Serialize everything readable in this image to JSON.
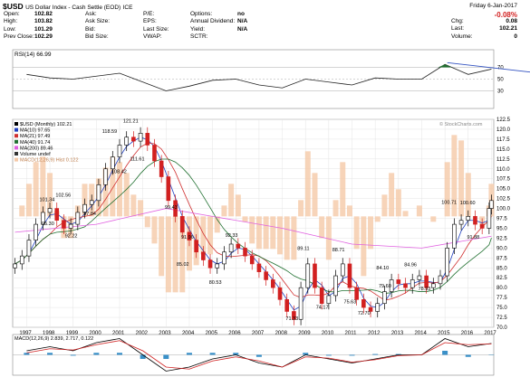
{
  "header": {
    "symbol": "$USD",
    "name": "US Dollar Index - Cash Settle (EOD)",
    "exchange": "ICE",
    "date": "Friday   6-Jan-2017",
    "change_pct": "-0.08%",
    "watermark": "© StockCharts.com",
    "quote": [
      {
        "label": "Open:",
        "value": "102.82"
      },
      {
        "label": "High:",
        "value": "103.82"
      },
      {
        "label": "Low:",
        "value": "101.29"
      },
      {
        "label": "Prev Close:",
        "value": "102.29"
      }
    ],
    "quote2": [
      {
        "label": "Ask:",
        "value": ""
      },
      {
        "label": "Ask Size:",
        "value": ""
      },
      {
        "label": "Bid:",
        "value": ""
      },
      {
        "label": "Bid Size:",
        "value": ""
      }
    ],
    "quote3": [
      {
        "label": "P/E:",
        "value": ""
      },
      {
        "label": "EPS:",
        "value": ""
      },
      {
        "label": "Last Size:",
        "value": ""
      },
      {
        "label": "VWAP:",
        "value": ""
      }
    ],
    "quote4": [
      {
        "label": "Options:",
        "value": "no"
      },
      {
        "label": "Annual Dividend:",
        "value": "N/A"
      },
      {
        "label": "Yield:",
        "value": "N/A"
      },
      {
        "label": "SCTR:",
        "value": ""
      }
    ],
    "quote5": [
      {
        "label": "Chg:",
        "value": "0.08"
      },
      {
        "label": "Last:",
        "value": "102.21"
      },
      {
        "label": "Volume:",
        "value": "0"
      }
    ]
  },
  "colors": {
    "up": "#000000",
    "down": "#d22020",
    "ma10": "#2040c0",
    "ma21": "#d03030",
    "ma40": "#207030",
    "ma200": "#e060e0",
    "macd_hist_fill": "#f5c9a8",
    "rsi_area": "#207030",
    "trendline": "#3050c0",
    "macd_signal": "#d02020",
    "macd_bar": "#3a90c8"
  },
  "chart_data": [
    {
      "type": "line",
      "title": "RSI(14) 66.99",
      "ylim": [
        0,
        100
      ],
      "y_ticks": [
        30,
        50,
        70
      ],
      "x": [
        1997,
        1998,
        1999,
        2000,
        2001,
        2002,
        2003,
        2004,
        2005,
        2006,
        2007,
        2008,
        2009,
        2010,
        2011,
        2012,
        2013,
        2014,
        2015,
        2016,
        2017
      ],
      "values": [
        58,
        52,
        50,
        55,
        60,
        45,
        30,
        38,
        48,
        50,
        40,
        35,
        50,
        45,
        40,
        52,
        50,
        50,
        75,
        58,
        67
      ]
    },
    {
      "type": "candlestick",
      "legend": [
        "$USD (Monthly) 102.21",
        "MA(10) 97.65",
        "MA(21) 97.49",
        "MA(40) 91.74",
        "MA(200) 89.46",
        "Volume undef",
        "MACD(12,26,9) Hist 0.122"
      ],
      "ylim": [
        70,
        122.5
      ],
      "y_ticks": [
        "122.5",
        "120.0",
        "117.5",
        "115.0",
        "112.5",
        "110.0",
        "107.5",
        "105.0",
        "102.5",
        "100.0",
        "97.5",
        "95.0",
        "92.5",
        "90.0",
        "87.5",
        "85.0",
        "82.5",
        "80.0",
        "77.5",
        "75.0",
        "72.5",
        "70.0"
      ],
      "x_ticks": [
        "1997",
        "1998",
        "1999",
        "2000",
        "2001",
        "2002",
        "2003",
        "2004",
        "2005",
        "2006",
        "2007",
        "2008",
        "2009",
        "2010",
        "2011",
        "2012",
        "2013",
        "2014",
        "2015",
        "2016",
        "2017"
      ],
      "annotations": [
        {
          "x": 1997.9,
          "y": 101.34,
          "text": "101.34"
        },
        {
          "x": 1998.6,
          "y": 102.56,
          "text": "102.56"
        },
        {
          "x": 1998.0,
          "y": 95.3,
          "text": "95.30"
        },
        {
          "x": 1999.8,
          "y": 97.84,
          "text": "97.84"
        },
        {
          "x": 1999.0,
          "y": 92.22,
          "text": "92.22"
        },
        {
          "x": 2000.6,
          "y": 118.59,
          "text": "118.59"
        },
        {
          "x": 2001.5,
          "y": 121.21,
          "text": "121.21"
        },
        {
          "x": 2001.0,
          "y": 108.42,
          "text": "108.42"
        },
        {
          "x": 2001.8,
          "y": 111.61,
          "text": "111.61"
        },
        {
          "x": 2003.3,
          "y": 99.43,
          "text": "99.43"
        },
        {
          "x": 2004.0,
          "y": 91.96,
          "text": "91.96"
        },
        {
          "x": 2003.8,
          "y": 85.02,
          "text": "85.02"
        },
        {
          "x": 2005.2,
          "y": 80.53,
          "text": "80.53"
        },
        {
          "x": 2005.9,
          "y": 92.33,
          "text": "92.33"
        },
        {
          "x": 2008.5,
          "y": 71.33,
          "text": "71.33"
        },
        {
          "x": 2009.0,
          "y": 89.11,
          "text": "89.11"
        },
        {
          "x": 2009.8,
          "y": 74.17,
          "text": "74.17"
        },
        {
          "x": 2010.5,
          "y": 88.71,
          "text": "88.71"
        },
        {
          "x": 2011.0,
          "y": 75.63,
          "text": "75.63"
        },
        {
          "x": 2011.6,
          "y": 72.7,
          "text": "72.70"
        },
        {
          "x": 2012.4,
          "y": 84.1,
          "text": "84.10"
        },
        {
          "x": 2012.5,
          "y": 79.6,
          "text": "79.60"
        },
        {
          "x": 2013.6,
          "y": 84.96,
          "text": "84.96"
        },
        {
          "x": 2014.2,
          "y": 78.93,
          "text": "78.93"
        },
        {
          "x": 2015.2,
          "y": 100.71,
          "text": "100.71"
        },
        {
          "x": 2016.0,
          "y": 100.6,
          "text": "100.60"
        },
        {
          "x": 2016.3,
          "y": 91.88,
          "text": "91.88"
        }
      ],
      "x": [
        1996.5,
        1996.8,
        1997.1,
        1997.4,
        1997.7,
        1998.0,
        1998.3,
        1998.6,
        1998.9,
        1999.2,
        1999.5,
        1999.8,
        2000.1,
        2000.4,
        2000.7,
        2001.0,
        2001.3,
        2001.6,
        2001.9,
        2002.2,
        2002.5,
        2002.8,
        2003.1,
        2003.4,
        2003.7,
        2004.0,
        2004.3,
        2004.6,
        2004.9,
        2005.2,
        2005.5,
        2005.8,
        2006.1,
        2006.4,
        2006.7,
        2007.0,
        2007.3,
        2007.6,
        2007.9,
        2008.2,
        2008.5,
        2008.8,
        2009.1,
        2009.4,
        2009.7,
        2010.0,
        2010.3,
        2010.6,
        2010.9,
        2011.2,
        2011.5,
        2011.8,
        2012.1,
        2012.4,
        2012.7,
        2013.0,
        2013.3,
        2013.6,
        2013.9,
        2014.2,
        2014.5,
        2014.8,
        2015.1,
        2015.4,
        2015.7,
        2016.0,
        2016.3,
        2016.6,
        2016.9,
        2017.0
      ],
      "close": [
        86,
        88,
        92,
        96,
        99,
        100,
        97,
        95,
        96,
        99,
        101,
        102,
        106,
        110,
        113,
        116,
        118,
        117,
        119,
        116,
        112,
        108,
        102,
        98,
        94,
        92,
        89,
        87,
        85,
        86,
        89,
        91,
        90,
        88,
        86,
        84,
        82,
        80,
        77,
        74,
        72,
        80,
        86,
        80,
        76,
        78,
        83,
        86,
        80,
        77,
        75,
        74,
        76,
        79,
        82,
        81,
        80,
        82,
        83,
        80,
        81,
        83,
        90,
        96,
        97,
        98,
        96,
        95,
        100,
        102
      ]
    },
    {
      "type": "line",
      "title": "MACD(12,26,9) 2.839, 2.717, 0.122",
      "x": [
        1997,
        1998,
        1999,
        2000,
        2001,
        2002,
        2003,
        2004,
        2005,
        2006,
        2007,
        2008,
        2009,
        2010,
        2011,
        2012,
        2013,
        2014,
        2015,
        2016,
        2017
      ],
      "series": [
        {
          "name": "MACD",
          "values": [
            1,
            2,
            1,
            3,
            4,
            0,
            -4,
            -3,
            -1,
            0,
            -2,
            -3,
            0,
            -1,
            -2,
            -1,
            0,
            0,
            4,
            2,
            2.8
          ]
        },
        {
          "name": "Signal",
          "values": [
            0.5,
            1.5,
            1.2,
            2.5,
            3.5,
            1,
            -3,
            -3.5,
            -1.5,
            -0.5,
            -1.5,
            -3,
            -0.5,
            -0.8,
            -1.8,
            -1.2,
            -0.2,
            0,
            3,
            2.5,
            2.7
          ]
        }
      ]
    }
  ]
}
